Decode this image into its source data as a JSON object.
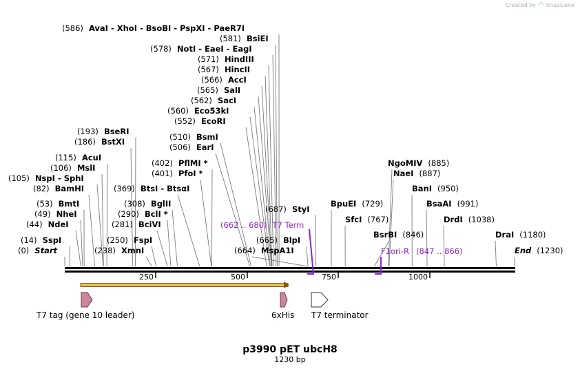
{
  "watermark": {
    "prefix": "Created by",
    "brand": "SnapGene"
  },
  "title": "p3990 pET ubcH8",
  "subtitle": "1230 bp",
  "total_bp": 1230,
  "colors": {
    "feature_purple": "#8e24c8",
    "backbone": "#000000",
    "cds_fill": "#c9879a",
    "orf_fill": "#e8c060"
  },
  "sites": [
    {
      "pos": "(586)",
      "names": "AvaI  - XhoI  - BsoBI  - PspXI  - PaeR7I",
      "bp": 586
    },
    {
      "pos": "(581)",
      "names": "BsiEI",
      "bp": 581
    },
    {
      "pos": "(578)",
      "names": "NotI  - EaeI  - EagI",
      "bp": 578
    },
    {
      "pos": "(571)",
      "names": "HindIII",
      "bp": 571
    },
    {
      "pos": "(567)",
      "names": "HincII",
      "bp": 567
    },
    {
      "pos": "(566)",
      "names": "AccI",
      "bp": 566
    },
    {
      "pos": "(565)",
      "names": "SalI",
      "bp": 565
    },
    {
      "pos": "(562)",
      "names": "SacI",
      "bp": 562
    },
    {
      "pos": "(560)",
      "names": "Eco53kI",
      "bp": 560
    },
    {
      "pos": "(552)",
      "names": "EcoRI",
      "bp": 552
    },
    {
      "pos": "(510)",
      "names": "BsmI",
      "bp": 510
    },
    {
      "pos": "(506)",
      "names": "EarI",
      "bp": 506
    },
    {
      "pos": "(402)",
      "names": "PflMI *",
      "bp": 402
    },
    {
      "pos": "(401)",
      "names": "PfoI *",
      "bp": 401
    },
    {
      "pos": "(193)",
      "names": "BseRI",
      "bp": 193
    },
    {
      "pos": "(186)",
      "names": "BstXI",
      "bp": 186
    },
    {
      "pos": "(115)",
      "names": "AcuI",
      "bp": 115
    },
    {
      "pos": "(106)",
      "names": "MslI",
      "bp": 106
    },
    {
      "pos": "(105)",
      "names": "NspI  - SphI",
      "bp": 105
    },
    {
      "pos": "(82)",
      "names": "BamHI",
      "bp": 82
    },
    {
      "pos": "(369)",
      "names": "BtsI  - BtsαI",
      "bp": 369
    },
    {
      "pos": "(308)",
      "names": "BglII",
      "bp": 308
    },
    {
      "pos": "(290)",
      "names": "BclI *",
      "bp": 290
    },
    {
      "pos": "(281)",
      "names": "BciVI",
      "bp": 281
    },
    {
      "pos": "(53)",
      "names": "BmtI",
      "bp": 53
    },
    {
      "pos": "(49)",
      "names": "NheI",
      "bp": 49
    },
    {
      "pos": "(44)",
      "names": "NdeI",
      "bp": 44
    },
    {
      "pos": "(250)",
      "names": "FspI",
      "bp": 250
    },
    {
      "pos": "(14)",
      "names": "SspI",
      "bp": 14
    },
    {
      "pos": "(238)",
      "names": "XmnI",
      "bp": 238
    },
    {
      "pos": "(0)",
      "names": "Start",
      "bp": 0
    },
    {
      "pos": "(687)",
      "names": "StyI",
      "bp": 687
    },
    {
      "pos": "(665)",
      "names": "BlpI",
      "bp": 665
    },
    {
      "pos": "(664)",
      "names": "MspA1I",
      "bp": 664
    },
    {
      "pos": "(729)",
      "names": "BpuEI",
      "bp": 729
    },
    {
      "pos": "(767)",
      "names": "SfcI",
      "bp": 767
    },
    {
      "pos": "(885)",
      "names": "NgoMIV",
      "bp": 885
    },
    {
      "pos": "(887)",
      "names": "NaeI",
      "bp": 887
    },
    {
      "pos": "(950)",
      "names": "BanI",
      "bp": 950
    },
    {
      "pos": "(991)",
      "names": "BsaAI",
      "bp": 991
    },
    {
      "pos": "(1038)",
      "names": "DrdI",
      "bp": 1038
    },
    {
      "pos": "(846)",
      "names": "BsrBI",
      "bp": 846
    },
    {
      "pos": "(1180)",
      "names": "DraI",
      "bp": 1180
    },
    {
      "pos": "(1230)",
      "names": "End",
      "bp": 1230
    }
  ],
  "annotations": [
    {
      "range": "(662 .. 680)",
      "name": "T7 Term"
    },
    {
      "range": "(847 .. 866)",
      "name": "F1ori-R"
    }
  ],
  "ticks": [
    "250",
    "500",
    "750",
    "1000"
  ],
  "features": [
    {
      "label": "T7 tag (gene 10 leader)"
    },
    {
      "label": "6xHis"
    },
    {
      "label": "T7 terminator"
    }
  ]
}
